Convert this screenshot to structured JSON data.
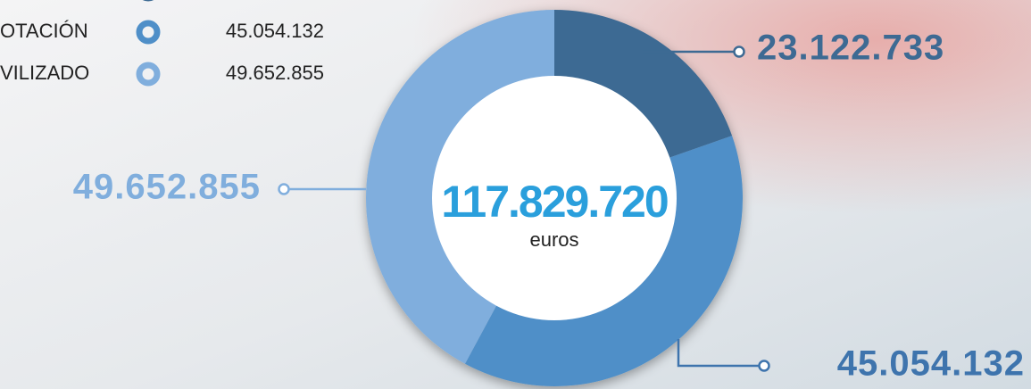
{
  "chart_data": {
    "type": "donut",
    "categories": [
      null,
      "OTACIÓN",
      "VILIZADO"
    ],
    "values": [
      23122733,
      45054132,
      49652855
    ],
    "value_labels": [
      "23.122.733",
      "45.054.132",
      "49.652.855"
    ],
    "colors": [
      "#3d6a93",
      "#4f8fc8",
      "#80aedd"
    ],
    "label_colors": [
      "#3d6a93",
      "#3e74ad",
      "#80aedd"
    ],
    "total_label": "117.829.720",
    "unit": "euros"
  }
}
